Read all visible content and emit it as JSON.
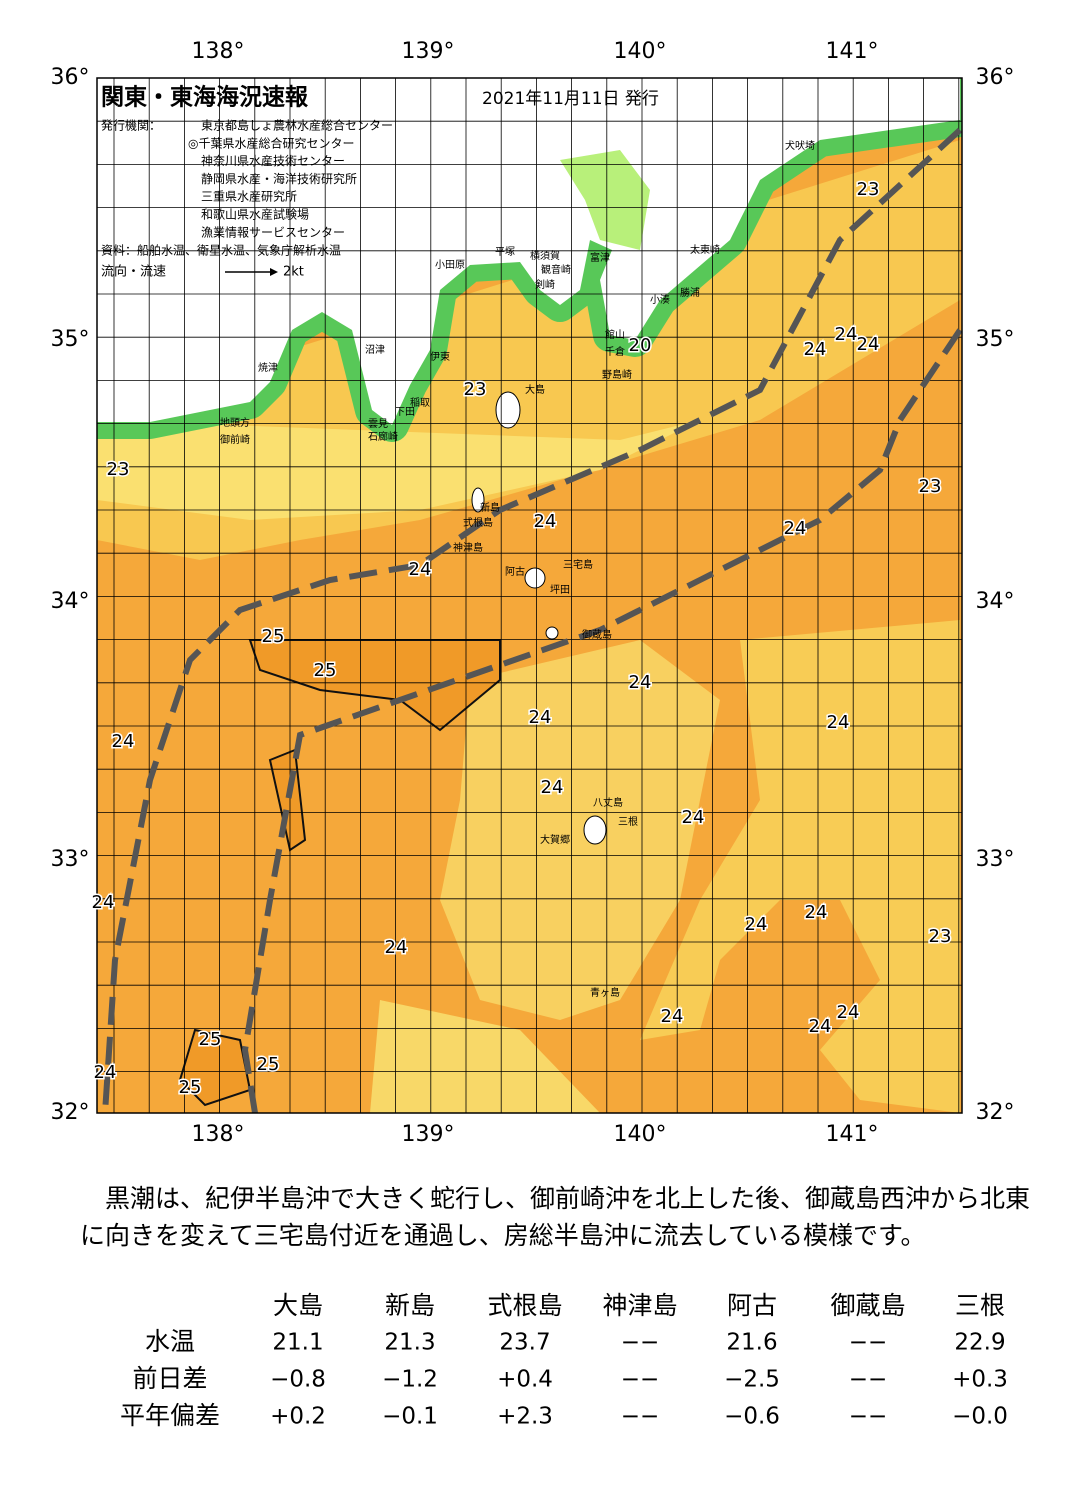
{
  "header": {
    "title": "関東・東海海況速報",
    "date": "2021年11月11日 発行",
    "publisher_label": "発行機関：",
    "publishers": [
      "東京都島しょ農林水産総合センター",
      "◎千葉県水産総合研究センター",
      "神奈川県水産技術センター",
      "静岡県水産・海洋技術研究所",
      "三重県水産研究所",
      "和歌山県水産試験場",
      "漁業情報サービスセンター"
    ],
    "source": "資料：船舶水温、衛星水温、気象庁解析水温",
    "flow_legend": "流向・流速",
    "flow_scale": "2kt"
  },
  "map": {
    "lon_labels": [
      "138°",
      "139°",
      "140°",
      "141°"
    ],
    "lat_labels": [
      "36°",
      "35°",
      "34°",
      "33°",
      "32°"
    ],
    "places": [
      "犬吠埼",
      "太東崎",
      "勝浦",
      "小湊",
      "富津",
      "館山",
      "千倉",
      "野島崎",
      "横須賀",
      "観音崎",
      "剣崎",
      "平塚",
      "小田原",
      "沼津",
      "焼津",
      "伊東",
      "稲取",
      "下田",
      "石廊崎",
      "雲見",
      "地頭方",
      "御前崎",
      "大島",
      "新島",
      "式根島",
      "神津島",
      "三宅島",
      "阿古",
      "坪田",
      "御蔵島",
      "八丈島",
      "三根",
      "大賀郷",
      "青ヶ島"
    ],
    "contour_labels": [
      "23",
      "23",
      "23",
      "23",
      "23",
      "24",
      "24",
      "24",
      "24",
      "24",
      "24",
      "24",
      "24",
      "24",
      "24",
      "24",
      "24",
      "24",
      "24",
      "24",
      "24",
      "24",
      "24",
      "24",
      "24",
      "20",
      "25",
      "25",
      "25",
      "25",
      "25"
    ]
  },
  "summary": "黒潮は、紀伊半島沖で大きく蛇行し、御前崎沖を北上した後、御蔵島西沖から北東に向きを変えて三宅島付近を通過し、房総半島沖に流去している模様です。",
  "table": {
    "columns": [
      "大島",
      "新島",
      "式根島",
      "神津島",
      "阿古",
      "御蔵島",
      "三根"
    ],
    "rows": [
      {
        "label": "水温",
        "cells": [
          "21.1",
          "21.3",
          "23.7",
          "−−",
          "21.6",
          "−−",
          "22.9"
        ]
      },
      {
        "label": "前日差",
        "cells": [
          "−0.8",
          "−1.2",
          "+0.4",
          "−−",
          "−2.5",
          "−−",
          "+0.3"
        ]
      },
      {
        "label": "平年偏差",
        "cells": [
          "+0.2",
          "−0.1",
          "+2.3",
          "−−",
          "−0.6",
          "−−",
          "−0.0"
        ]
      }
    ]
  }
}
